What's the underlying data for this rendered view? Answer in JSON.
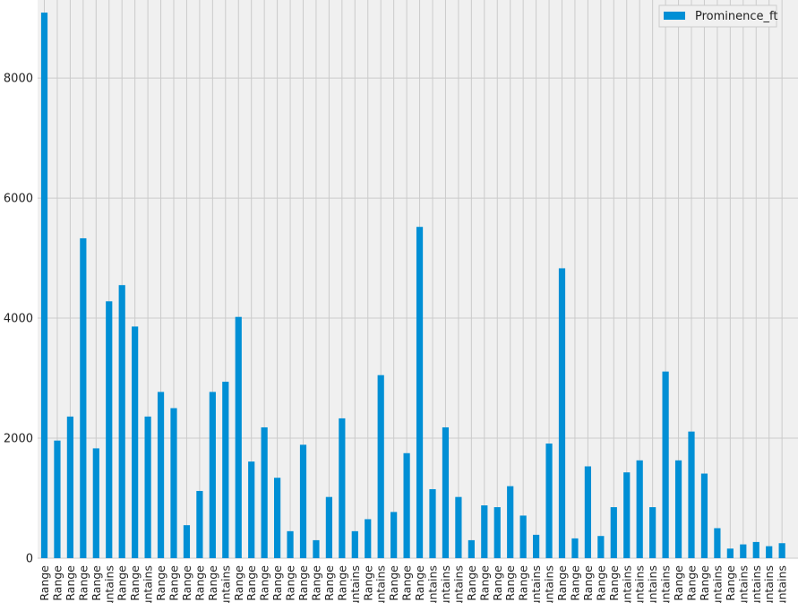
{
  "chart_data": {
    "type": "bar",
    "title": "",
    "xlabel": "",
    "ylabel": "",
    "ylim": [
      0,
      9300
    ],
    "yticks": [
      0,
      2000,
      4000,
      6000,
      8000
    ],
    "grid": true,
    "legend_position": "top-right",
    "series": [
      {
        "name": "Prominence_ft",
        "color": "#008fd5",
        "values": [
          9090,
          1960,
          2360,
          5330,
          1830,
          4280,
          4550,
          3860,
          2360,
          2770,
          2500,
          550,
          1120,
          2770,
          2940,
          4020,
          1610,
          2180,
          1340,
          450,
          1890,
          300,
          1020,
          2330,
          450,
          650,
          3050,
          770,
          1750,
          5520,
          1150,
          2180,
          1020,
          300,
          880,
          850,
          1200,
          710,
          390,
          1910,
          4830,
          330,
          1530,
          370,
          850,
          1430,
          1630,
          850,
          3110,
          1630,
          2110,
          1410,
          500,
          160,
          230,
          270,
          200,
          250
        ]
      }
    ],
    "categories": [
      "o Range",
      "o Range",
      "o Range",
      "o Range",
      "o Range",
      "untains",
      "o Range",
      "o Range",
      "untains",
      "c Range",
      "o Range",
      "o Range",
      "c Range",
      "c Range",
      "untains",
      "o Range",
      "o Range",
      "o Range",
      "o Range",
      "o Range",
      "o Range",
      "o Range",
      "o Range",
      "o Range",
      "untains",
      "o Range",
      "untains",
      "o Range",
      "o Range",
      "c Range",
      "untains",
      "untains",
      "untains",
      "o Range",
      "o Range",
      "o Range",
      "o Range",
      "c Range",
      "untains",
      "untains",
      "o Range",
      "o Range",
      "o Range",
      "o Range",
      "o Range",
      "untains",
      "untains",
      "untains",
      "untains",
      "o Range",
      "o Range",
      "o Range",
      "untains",
      "o Range",
      "untains",
      "untains",
      "untains",
      "untains"
    ]
  }
}
